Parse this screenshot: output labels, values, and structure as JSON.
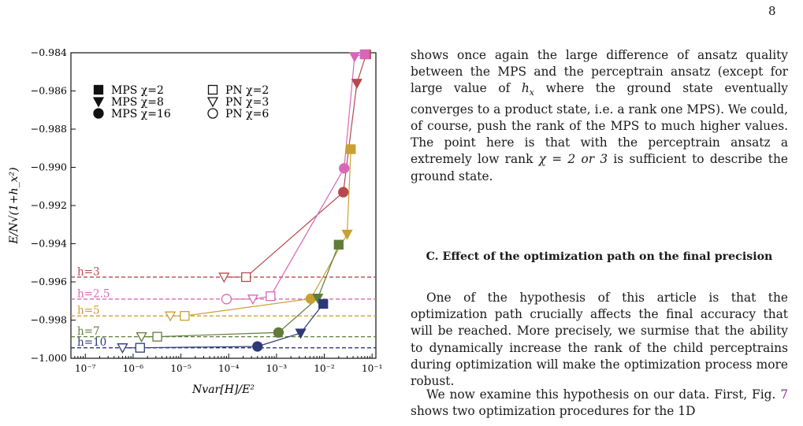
{
  "page_number": "8",
  "chart_data": {
    "type": "scatter",
    "xlabel": "Nvar[H]/E²",
    "ylabel": "E/N√(1+h_x²)",
    "x_scale": "log",
    "xlim": [
      5e-08,
      0.12
    ],
    "ylim": [
      -1.0,
      -0.984
    ],
    "x_ticks": [
      "10⁻⁷",
      "10⁻⁶",
      "10⁻⁵",
      "10⁻⁴",
      "10⁻³",
      "10⁻²",
      "10⁻¹"
    ],
    "y_ticks": [
      "−0.984",
      "−0.986",
      "−0.988",
      "−0.990",
      "−0.992",
      "−0.994",
      "−0.996",
      "−0.998",
      "−1.000"
    ],
    "legend": [
      {
        "label": "MPS χ=2",
        "marker": "square",
        "filled": true
      },
      {
        "label": "MPS χ=8",
        "marker": "triangle-down",
        "filled": true
      },
      {
        "label": "MPS χ=16",
        "marker": "circle",
        "filled": true
      },
      {
        "label": "PN χ=2",
        "marker": "square",
        "filled": false
      },
      {
        "label": "PN χ=3",
        "marker": "triangle-down",
        "filled": false
      },
      {
        "label": "PN χ=6",
        "marker": "circle",
        "filled": false
      }
    ],
    "series": [
      {
        "name": "h=3",
        "color": "#b5494e",
        "ref_y": -0.99575,
        "pn": [
          {
            "x": 8e-05,
            "y": -0.99575,
            "m": "tri"
          },
          {
            "x": 0.00023,
            "y": -0.99575,
            "m": "sq"
          }
        ],
        "mps": [
          {
            "x": 0.025,
            "y": -0.9913,
            "m": "circ"
          },
          {
            "x": 0.048,
            "y": -0.9856,
            "m": "tri"
          },
          {
            "x": 0.075,
            "y": -0.9835,
            "m": "sq"
          }
        ]
      },
      {
        "name": "h=2.5",
        "color": "#d867b9",
        "ref_y": -0.9969,
        "pn": [
          {
            "x": 9e-05,
            "y": -0.9969,
            "m": "circ"
          },
          {
            "x": 0.00032,
            "y": -0.9969,
            "m": "tri"
          },
          {
            "x": 0.00075,
            "y": -0.99675,
            "m": "sq"
          }
        ],
        "mps": [
          {
            "x": 0.026,
            "y": -0.99005,
            "m": "circ"
          },
          {
            "x": 0.043,
            "y": -0.9842,
            "m": "tri"
          },
          {
            "x": 0.07,
            "y": -0.983,
            "m": "sq"
          }
        ]
      },
      {
        "name": "h=5",
        "color": "#c9a033",
        "ref_y": -0.99778,
        "pn": [
          {
            "x": 6e-06,
            "y": -0.99778,
            "m": "tri"
          },
          {
            "x": 1.2e-05,
            "y": -0.99778,
            "m": "sq"
          }
        ],
        "mps": [
          {
            "x": 0.0052,
            "y": -0.99688,
            "m": "circ"
          },
          {
            "x": 0.03,
            "y": -0.9935,
            "m": "tri"
          },
          {
            "x": 0.036,
            "y": -0.98905,
            "m": "sq"
          }
        ]
      },
      {
        "name": "h=7",
        "color": "#5f7c3a",
        "ref_y": -0.99887,
        "pn": [
          {
            "x": 1.5e-06,
            "y": -0.99887,
            "m": "tri"
          },
          {
            "x": 3.2e-06,
            "y": -0.99887,
            "m": "sq"
          }
        ],
        "mps": [
          {
            "x": 0.0011,
            "y": -0.99865,
            "m": "circ"
          },
          {
            "x": 0.0073,
            "y": -0.99685,
            "m": "tri"
          },
          {
            "x": 0.02,
            "y": -0.99405,
            "m": "sq"
          }
        ]
      },
      {
        "name": "h=10",
        "color": "#2c3a78",
        "ref_y": -0.99945,
        "pn": [
          {
            "x": 6e-07,
            "y": -0.99945,
            "m": "tri"
          },
          {
            "x": 1.4e-06,
            "y": -0.99945,
            "m": "sq"
          }
        ],
        "mps": [
          {
            "x": 0.0004,
            "y": -0.99938,
            "m": "circ"
          },
          {
            "x": 0.0032,
            "y": -0.99868,
            "m": "tri"
          },
          {
            "x": 0.0095,
            "y": -0.99715,
            "m": "sq"
          }
        ]
      }
    ]
  },
  "text": {
    "para1": "shows once again the large difference of ansatz quality between the MPS and the perceptrain ansatz (except for large value of",
    "para1_var": "h",
    "para1_sub": "x",
    "para1_rest": "where the ground state eventually converges to a product state, i.e.  a rank one MPS). We could, of course, push the rank of the MPS to much higher values. The point here is that with the perceptrain ansatz a extremely low rank",
    "para1_chi": "χ = 2 or 3",
    "para1_end": "is sufficient to describe the ground state.",
    "heading": "C.   Effect of the optimization path on the final precision",
    "para3": "One of the hypothesis of this article is that the optimization path crucially affects the final accuracy that will be reached. More precisely, we surmise that the ability to dynamically increase the rank of the child perceptrains during optimization will make the optimization process more robust.",
    "para4_a": "We now examine this hypothesis on our data. First, Fig.",
    "para4_ref": "7",
    "para4_b": "shows two optimization procedures for the 1D"
  }
}
